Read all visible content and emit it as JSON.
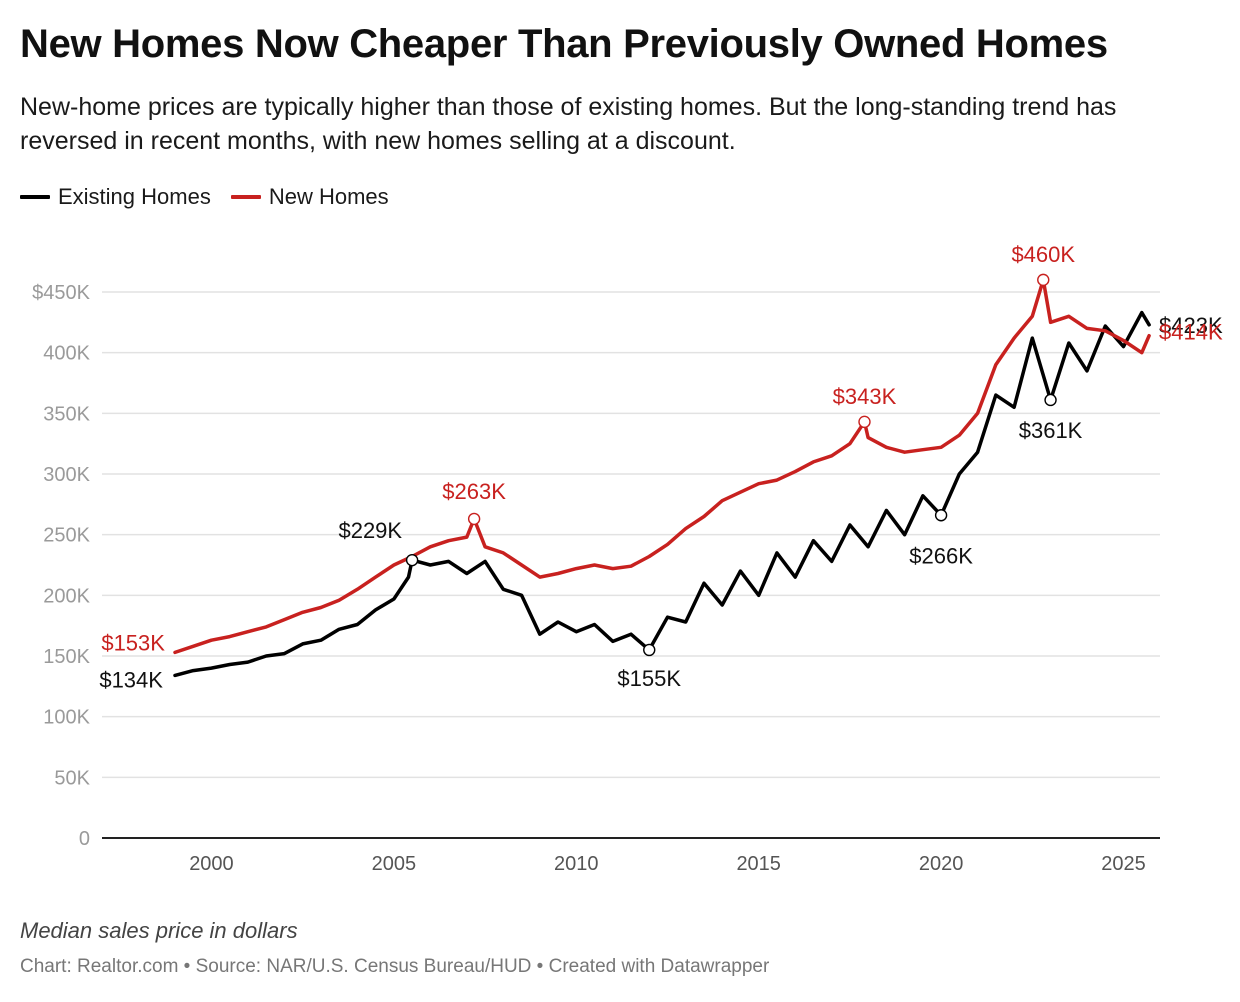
{
  "title": "New Homes Now Cheaper Than Previously Owned Homes",
  "subtitle": "New-home prices are typically higher than those of existing homes. But the long-standing trend has reversed in recent months, with new homes selling at a discount.",
  "legend": [
    {
      "name": "Existing Homes",
      "color": "#000000"
    },
    {
      "name": "New Homes",
      "color": "#c8211f"
    }
  ],
  "note": "Median sales price in dollars",
  "source": "Chart: Realtor.com • Source: NAR/U.S. Census Bureau/HUD • Created with Datawrapper",
  "chart_data": {
    "type": "line",
    "xlim": [
      1997,
      2026
    ],
    "ylim": [
      0,
      450000
    ],
    "y_ticks": [
      {
        "value": 0,
        "label": "0"
      },
      {
        "value": 50000,
        "label": "50K"
      },
      {
        "value": 100000,
        "label": "100K"
      },
      {
        "value": 150000,
        "label": "150K"
      },
      {
        "value": 200000,
        "label": "200K"
      },
      {
        "value": 250000,
        "label": "250K"
      },
      {
        "value": 300000,
        "label": "300K"
      },
      {
        "value": 350000,
        "label": "350K"
      },
      {
        "value": 400000,
        "label": "400K"
      },
      {
        "value": 450000,
        "label": "$450K"
      }
    ],
    "x_ticks": [
      {
        "value": 2000,
        "label": "2000"
      },
      {
        "value": 2005,
        "label": "2005"
      },
      {
        "value": 2010,
        "label": "2010"
      },
      {
        "value": 2015,
        "label": "2015"
      },
      {
        "value": 2020,
        "label": "2020"
      },
      {
        "value": 2025,
        "label": "2025"
      }
    ],
    "grid": true,
    "series": [
      {
        "name": "Existing Homes",
        "color": "#000000",
        "points": [
          [
            1999.0,
            134000
          ],
          [
            1999.5,
            138000
          ],
          [
            2000.0,
            140000
          ],
          [
            2000.5,
            143000
          ],
          [
            2001.0,
            145000
          ],
          [
            2001.5,
            150000
          ],
          [
            2002.0,
            152000
          ],
          [
            2002.5,
            160000
          ],
          [
            2003.0,
            163000
          ],
          [
            2003.5,
            172000
          ],
          [
            2004.0,
            176000
          ],
          [
            2004.5,
            188000
          ],
          [
            2005.0,
            197000
          ],
          [
            2005.4,
            215000
          ],
          [
            2005.5,
            229000
          ],
          [
            2006.0,
            225000
          ],
          [
            2006.5,
            228000
          ],
          [
            2007.0,
            218000
          ],
          [
            2007.5,
            228000
          ],
          [
            2008.0,
            205000
          ],
          [
            2008.5,
            200000
          ],
          [
            2009.0,
            168000
          ],
          [
            2009.5,
            178000
          ],
          [
            2010.0,
            170000
          ],
          [
            2010.5,
            176000
          ],
          [
            2011.0,
            162000
          ],
          [
            2011.5,
            168000
          ],
          [
            2012.0,
            155000
          ],
          [
            2012.5,
            182000
          ],
          [
            2013.0,
            178000
          ],
          [
            2013.5,
            210000
          ],
          [
            2014.0,
            192000
          ],
          [
            2014.5,
            220000
          ],
          [
            2015.0,
            200000
          ],
          [
            2015.5,
            235000
          ],
          [
            2016.0,
            215000
          ],
          [
            2016.5,
            245000
          ],
          [
            2017.0,
            228000
          ],
          [
            2017.5,
            258000
          ],
          [
            2018.0,
            240000
          ],
          [
            2018.5,
            270000
          ],
          [
            2019.0,
            250000
          ],
          [
            2019.5,
            282000
          ],
          [
            2020.0,
            266000
          ],
          [
            2020.5,
            300000
          ],
          [
            2021.0,
            318000
          ],
          [
            2021.5,
            365000
          ],
          [
            2022.0,
            355000
          ],
          [
            2022.5,
            412000
          ],
          [
            2023.0,
            361000
          ],
          [
            2023.5,
            408000
          ],
          [
            2024.0,
            385000
          ],
          [
            2024.5,
            422000
          ],
          [
            2025.0,
            405000
          ],
          [
            2025.5,
            433000
          ],
          [
            2025.7,
            423000
          ]
        ],
        "annotations": [
          {
            "x": 1999.0,
            "y": 134000,
            "label": "$134K"
          },
          {
            "x": 2005.5,
            "y": 229000,
            "label": "$229K"
          },
          {
            "x": 2012.0,
            "y": 155000,
            "label": "$155K"
          },
          {
            "x": 2020.0,
            "y": 266000,
            "label": "$266K"
          },
          {
            "x": 2023.0,
            "y": 361000,
            "label": "$361K"
          },
          {
            "x": 2025.7,
            "y": 423000,
            "label": "$423K"
          }
        ]
      },
      {
        "name": "New Homes",
        "color": "#c8211f",
        "points": [
          [
            1999.0,
            153000
          ],
          [
            1999.5,
            158000
          ],
          [
            2000.0,
            163000
          ],
          [
            2000.5,
            166000
          ],
          [
            2001.0,
            170000
          ],
          [
            2001.5,
            174000
          ],
          [
            2002.0,
            180000
          ],
          [
            2002.5,
            186000
          ],
          [
            2003.0,
            190000
          ],
          [
            2003.5,
            196000
          ],
          [
            2004.0,
            205000
          ],
          [
            2004.5,
            215000
          ],
          [
            2005.0,
            225000
          ],
          [
            2005.5,
            232000
          ],
          [
            2006.0,
            240000
          ],
          [
            2006.5,
            245000
          ],
          [
            2007.0,
            248000
          ],
          [
            2007.2,
            263000
          ],
          [
            2007.5,
            240000
          ],
          [
            2008.0,
            235000
          ],
          [
            2008.5,
            225000
          ],
          [
            2009.0,
            215000
          ],
          [
            2009.5,
            218000
          ],
          [
            2010.0,
            222000
          ],
          [
            2010.5,
            225000
          ],
          [
            2011.0,
            222000
          ],
          [
            2011.5,
            224000
          ],
          [
            2012.0,
            232000
          ],
          [
            2012.5,
            242000
          ],
          [
            2013.0,
            255000
          ],
          [
            2013.5,
            265000
          ],
          [
            2014.0,
            278000
          ],
          [
            2014.5,
            285000
          ],
          [
            2015.0,
            292000
          ],
          [
            2015.5,
            295000
          ],
          [
            2016.0,
            302000
          ],
          [
            2016.5,
            310000
          ],
          [
            2017.0,
            315000
          ],
          [
            2017.5,
            325000
          ],
          [
            2017.9,
            343000
          ],
          [
            2018.0,
            330000
          ],
          [
            2018.5,
            322000
          ],
          [
            2019.0,
            318000
          ],
          [
            2019.5,
            320000
          ],
          [
            2020.0,
            322000
          ],
          [
            2020.5,
            332000
          ],
          [
            2021.0,
            350000
          ],
          [
            2021.5,
            390000
          ],
          [
            2022.0,
            412000
          ],
          [
            2022.5,
            430000
          ],
          [
            2022.8,
            460000
          ],
          [
            2023.0,
            425000
          ],
          [
            2023.5,
            430000
          ],
          [
            2024.0,
            420000
          ],
          [
            2024.5,
            418000
          ],
          [
            2025.0,
            410000
          ],
          [
            2025.5,
            400000
          ],
          [
            2025.7,
            414000
          ]
        ],
        "annotations": [
          {
            "x": 1999.0,
            "y": 153000,
            "label": "$153K"
          },
          {
            "x": 2007.2,
            "y": 263000,
            "label": "$263K"
          },
          {
            "x": 2017.9,
            "y": 343000,
            "label": "$343K"
          },
          {
            "x": 2022.8,
            "y": 460000,
            "label": "$460K"
          },
          {
            "x": 2025.7,
            "y": 414000,
            "label": "$414K"
          }
        ]
      }
    ]
  }
}
